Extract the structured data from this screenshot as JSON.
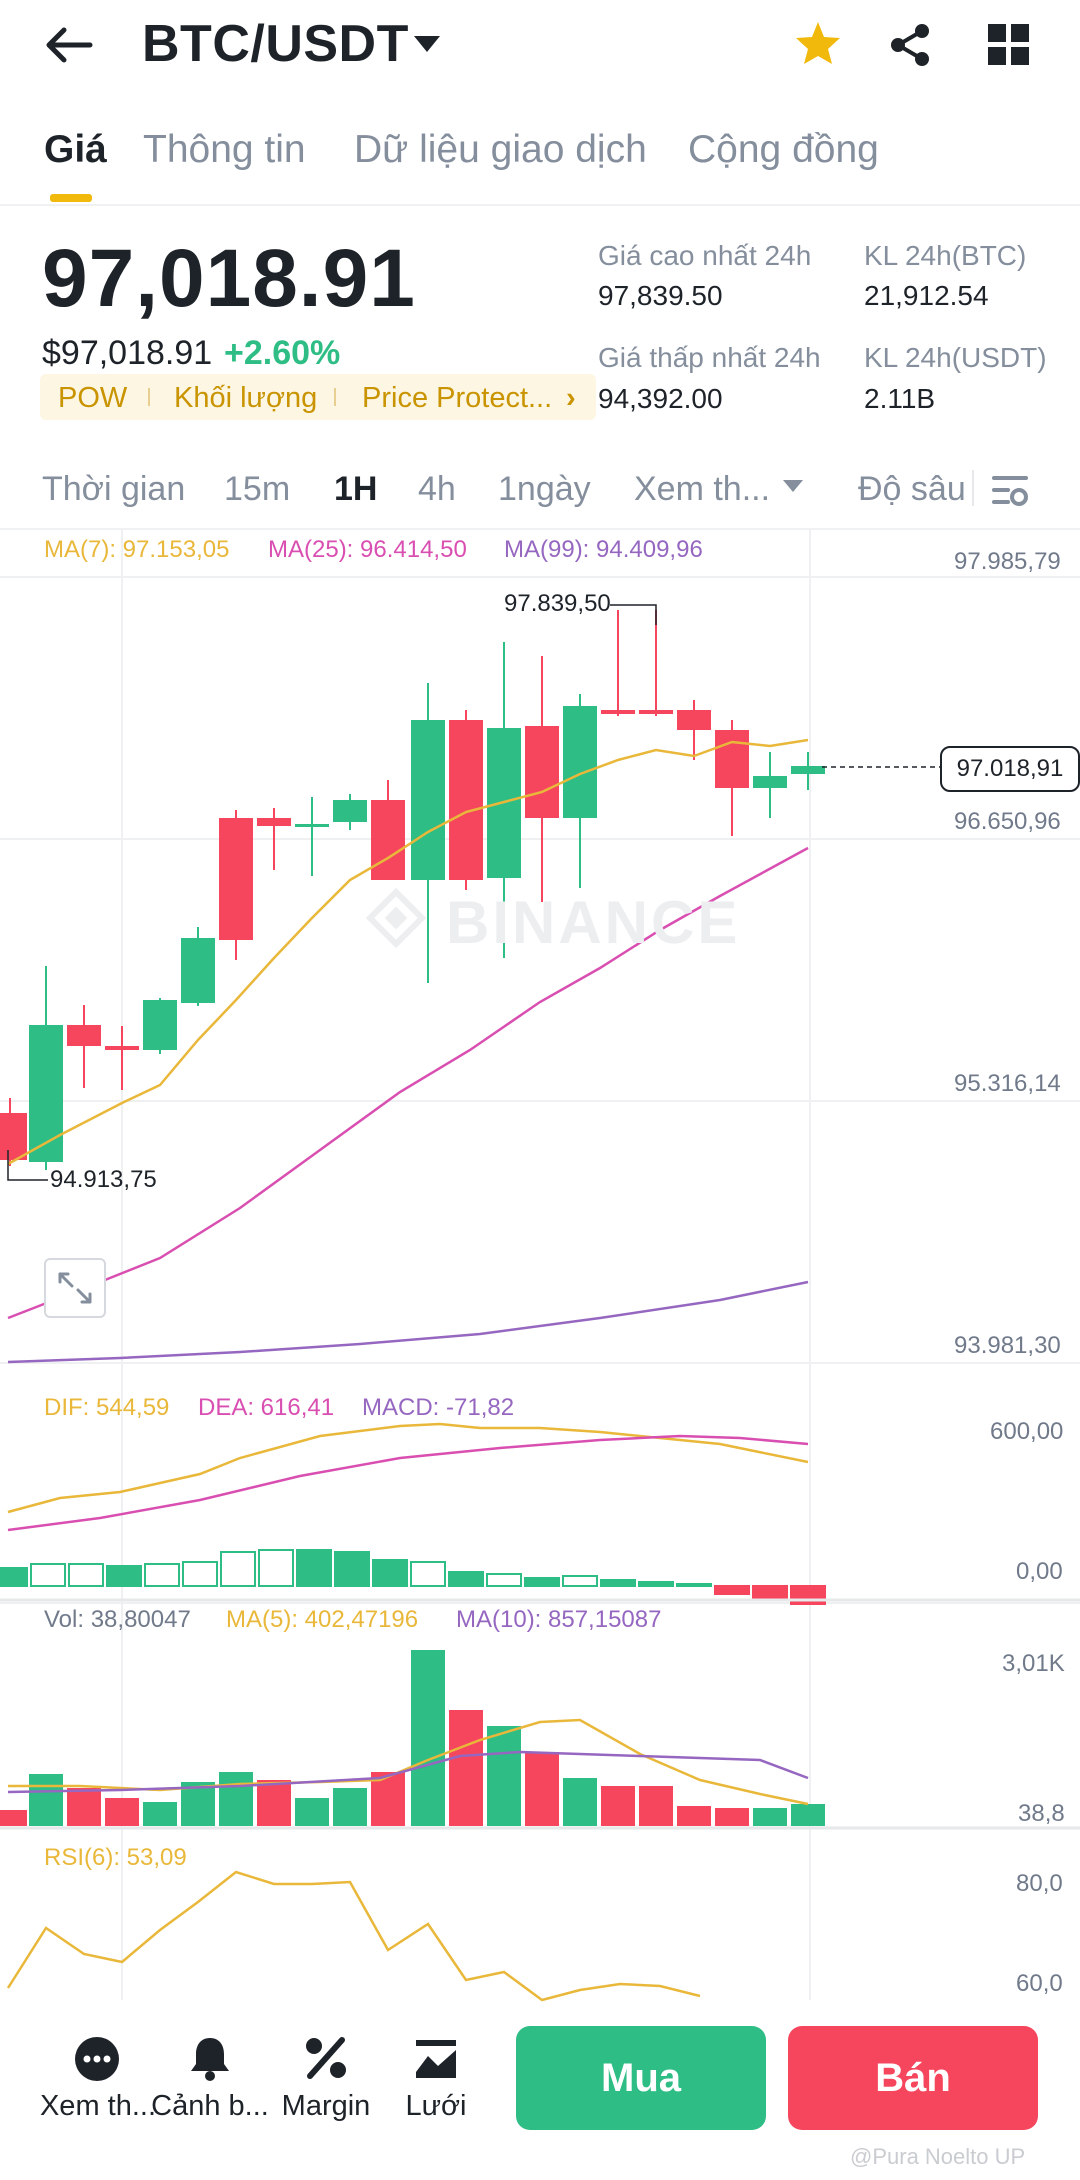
{
  "header": {
    "pair": "BTC/USDT"
  },
  "tabs": [
    "Giá",
    "Thông tin",
    "Dữ liệu giao dịch",
    "Cộng đồng"
  ],
  "price": {
    "last": "97,018.91",
    "usd": "$97,018.91",
    "change": "+2.60%"
  },
  "tags": [
    "POW",
    "Khối lượng",
    "Price Protect...",
    "›"
  ],
  "stats": {
    "high_label": "Giá cao nhất 24h",
    "high": "97,839.50",
    "low_label": "Giá thấp nhất 24h",
    "low": "94,392.00",
    "vol_btc_label": "KL 24h(BTC)",
    "vol_btc": "21,912.54",
    "vol_usdt_label": "KL 24h(USDT)",
    "vol_usdt": "2.11B"
  },
  "timeframes": [
    "Thời gian",
    "15m",
    "1H",
    "4h",
    "1ngày",
    "Xem th...",
    "Độ sâu"
  ],
  "active_timeframe": "1H",
  "main_chart": {
    "ma7": "MA(7): 97.153,05",
    "ma25": "MA(25): 96.414,50",
    "ma99": "MA(99): 94.409,96",
    "axis": [
      "97.985,79",
      "96.650,96",
      "95.316,14",
      "93.981,30"
    ],
    "high_mark": "97.839,50",
    "low_mark": "94.913,75",
    "current": "97.018,91",
    "watermark": "BINANCE",
    "colors": {
      "up": "#2ebd85",
      "down": "#f6465d",
      "ma7": "#e9b83a",
      "ma25": "#d94fb1",
      "ma99": "#9667c0"
    }
  },
  "macd": {
    "dif": "DIF: 544,59",
    "dea": "DEA: 616,41",
    "macd": "MACD: -71,82",
    "axis": [
      "600,00",
      "0,00"
    ]
  },
  "volume": {
    "vol": "Vol: 38,80047",
    "ma5": "MA(5): 402,47196",
    "ma10": "MA(10): 857,15087",
    "axis": [
      "3,01K",
      "38,8"
    ]
  },
  "rsi": {
    "label": "RSI(6): 53,09",
    "axis": [
      "80,0",
      "60,0"
    ]
  },
  "bottom": {
    "items": [
      "Xem th...",
      "Cảnh b...",
      "Margin",
      "Lưới"
    ],
    "buy": "Mua",
    "sell": "Bán"
  },
  "watermark_user": "@Pura Noelto UP"
}
